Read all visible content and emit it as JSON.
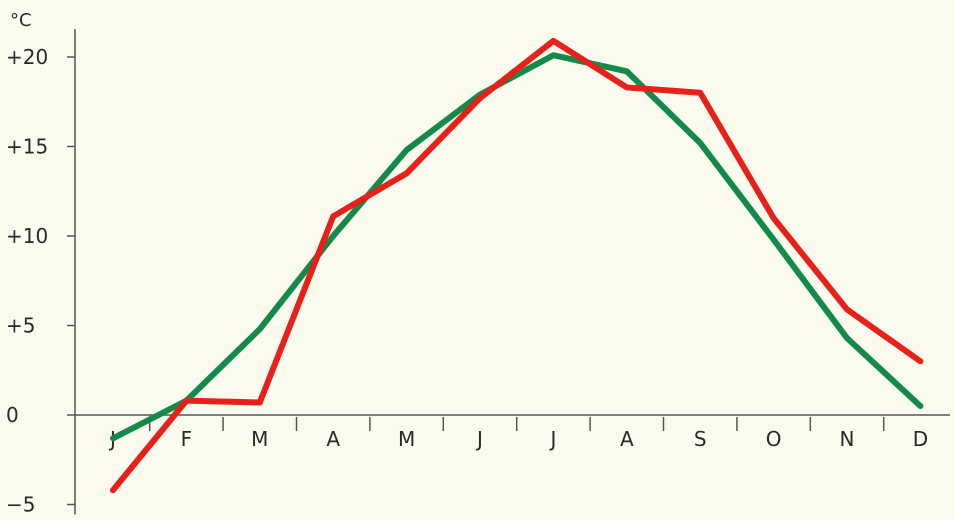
{
  "chart_data": {
    "type": "line",
    "unit": "°C",
    "categories": [
      "J",
      "F",
      "M",
      "A",
      "M",
      "J",
      "J",
      "A",
      "S",
      "O",
      "N",
      "D"
    ],
    "y_ticks": [
      {
        "value": 20,
        "label": "+20"
      },
      {
        "value": 15,
        "label": "+15"
      },
      {
        "value": 10,
        "label": "+10"
      },
      {
        "value": 5,
        "label": "+5"
      },
      {
        "value": 0,
        "label": "0"
      },
      {
        "value": -5,
        "label": "−5"
      }
    ],
    "ylim": [
      -5,
      21
    ],
    "grid": false,
    "series": [
      {
        "color": "#138a4a",
        "values": [
          -1.3,
          0.8,
          4.8,
          10.0,
          14.8,
          17.9,
          20.1,
          19.2,
          15.2,
          9.8,
          4.3,
          0.5
        ]
      },
      {
        "color": "#e8201a",
        "values": [
          -4.2,
          0.8,
          0.7,
          11.1,
          13.5,
          17.7,
          20.9,
          18.3,
          18.0,
          11.0,
          5.9,
          3.0
        ]
      }
    ]
  }
}
